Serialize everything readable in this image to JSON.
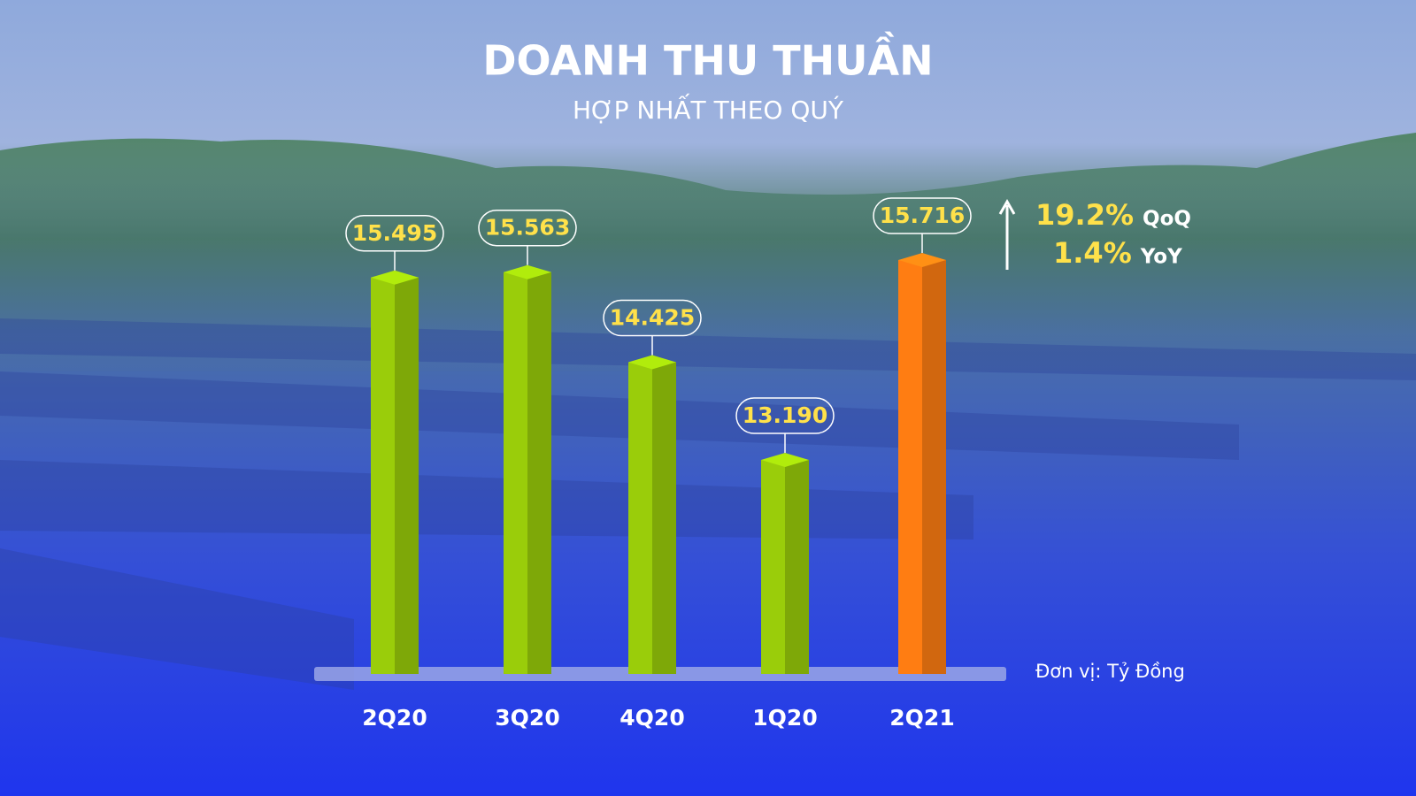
{
  "chart_data": {
    "type": "bar",
    "title": "DOANH THU THUẦN",
    "subtitle": "HỢP NHẤT THEO QUÝ",
    "categories": [
      "2Q20",
      "3Q20",
      "4Q20",
      "1Q20",
      "2Q21"
    ],
    "values": [
      15495,
      15563,
      14425,
      13190,
      15716
    ],
    "value_labels": [
      "15.495",
      "15.563",
      "14.425",
      "13.190",
      "15.716"
    ],
    "colors": [
      "#9acd0a",
      "#9acd0a",
      "#9acd0a",
      "#9acd0a",
      "#ff7d12"
    ],
    "annotations": [
      {
        "text": "19.2%",
        "label": "QoQ"
      },
      {
        "text": "1.4%",
        "label": "YoY"
      }
    ],
    "unit_label": "Đơn vị: Tỷ Đồng"
  }
}
